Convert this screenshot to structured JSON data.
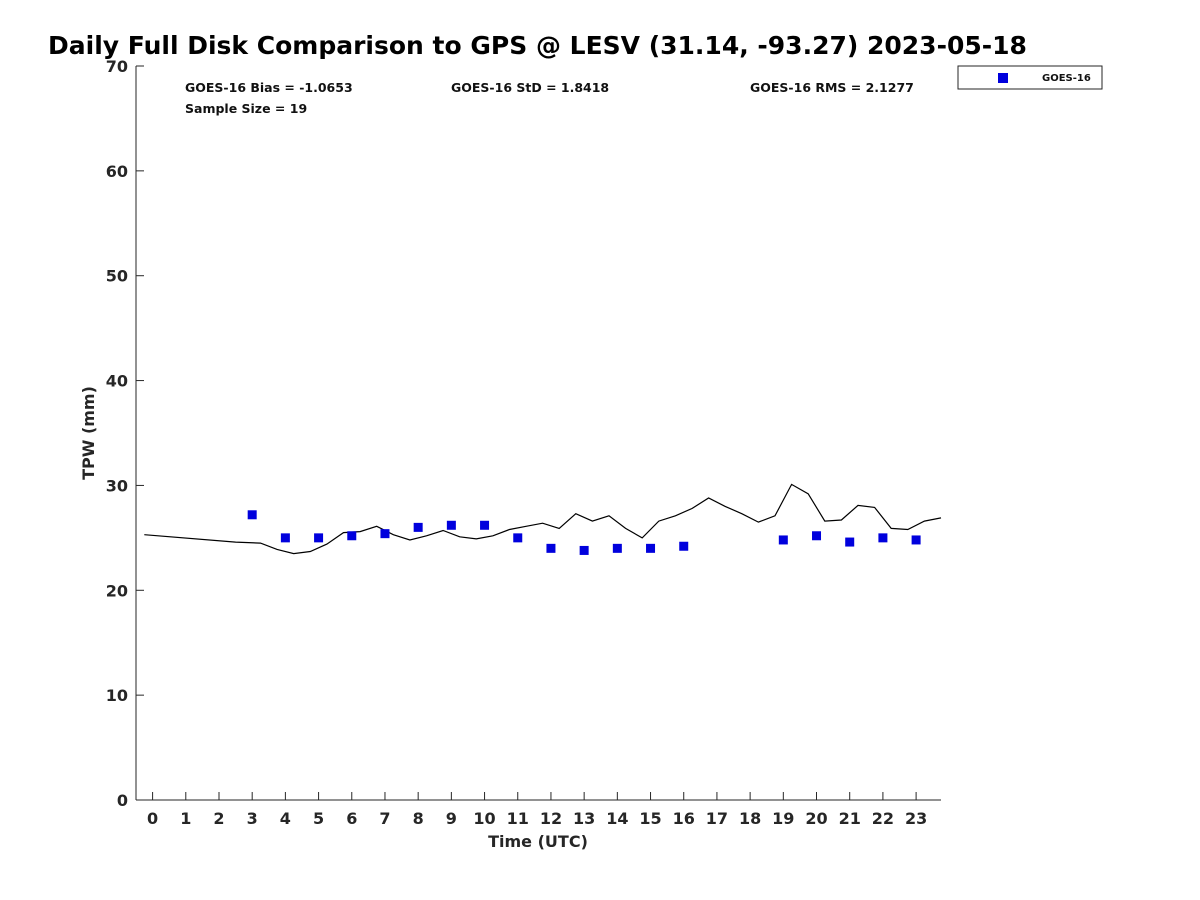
{
  "chart_data": {
    "type": "scatter",
    "title": "Daily Full Disk Comparison to GPS @ LESV (31.14, -93.27) 2023-05-18",
    "xlabel": "Time (UTC)",
    "ylabel": "TPW (mm)",
    "xlim": [
      -0.5,
      23.75
    ],
    "ylim": [
      0,
      70
    ],
    "x_ticks": [
      0,
      1,
      2,
      3,
      4,
      5,
      6,
      7,
      8,
      9,
      10,
      11,
      12,
      13,
      14,
      15,
      16,
      17,
      18,
      19,
      20,
      21,
      22,
      23
    ],
    "x_tick_labels": [
      "0",
      "1",
      "2",
      "3",
      "4",
      "5",
      "6",
      "7",
      "8",
      "9",
      "10",
      "11",
      "12",
      "13",
      "14",
      "15",
      "16",
      "17",
      "18",
      "19",
      "20",
      "21",
      "22",
      "23"
    ],
    "y_ticks": [
      0,
      10,
      20,
      30,
      40,
      50,
      60,
      70
    ],
    "y_tick_labels": [
      "0",
      "10",
      "20",
      "30",
      "40",
      "50",
      "60",
      "70"
    ],
    "grid": false,
    "legend_position": "top-right",
    "stats": {
      "bias": "GOES-16 Bias = -1.0653",
      "std": "GOES-16 StD = 1.8418",
      "rms": "GOES-16 RMS = 2.1277",
      "sample_size": "Sample Size = 19"
    },
    "series": [
      {
        "name": "GOES-16",
        "type": "scatter",
        "color": "#0000dd",
        "marker": "square",
        "x": [
          3,
          4,
          5,
          6,
          7,
          8,
          9,
          10,
          11,
          12,
          13,
          14,
          15,
          16,
          19,
          20,
          21,
          22,
          23
        ],
        "y": [
          27.2,
          25.0,
          25.0,
          25.2,
          25.4,
          26.0,
          26.2,
          26.2,
          25.0,
          24.0,
          23.8,
          24.0,
          24.0,
          24.2,
          24.8,
          25.2,
          24.6,
          25.0,
          24.8
        ]
      },
      {
        "type": "line",
        "color": "#000000",
        "x": [
          -0.25,
          2.5,
          3.25,
          3.75,
          4.25,
          4.75,
          5.25,
          5.75,
          6.25,
          6.75,
          7.25,
          7.75,
          8.25,
          8.75,
          9.25,
          9.75,
          10.25,
          10.75,
          11.25,
          11.75,
          12.25,
          12.75,
          13.25,
          13.75,
          14.25,
          14.75,
          15.25,
          15.75,
          16.25,
          16.75,
          17.25,
          17.75,
          18.25,
          18.75,
          19.25,
          19.75,
          20.25,
          20.75,
          21.25,
          21.75,
          22.25,
          22.75,
          23.25,
          23.75
        ],
        "y": [
          25.3,
          24.6,
          24.5,
          23.9,
          23.5,
          23.7,
          24.4,
          25.5,
          25.6,
          26.1,
          25.3,
          24.8,
          25.2,
          25.7,
          25.1,
          24.9,
          25.2,
          25.8,
          26.1,
          26.4,
          25.9,
          27.3,
          26.6,
          27.1,
          25.9,
          25.0,
          26.6,
          27.1,
          27.8,
          28.8,
          28.0,
          27.3,
          26.5,
          27.1,
          30.1,
          29.2,
          26.6,
          26.7,
          28.1,
          27.9,
          25.9,
          25.8,
          26.6,
          26.9
        ]
      }
    ]
  }
}
